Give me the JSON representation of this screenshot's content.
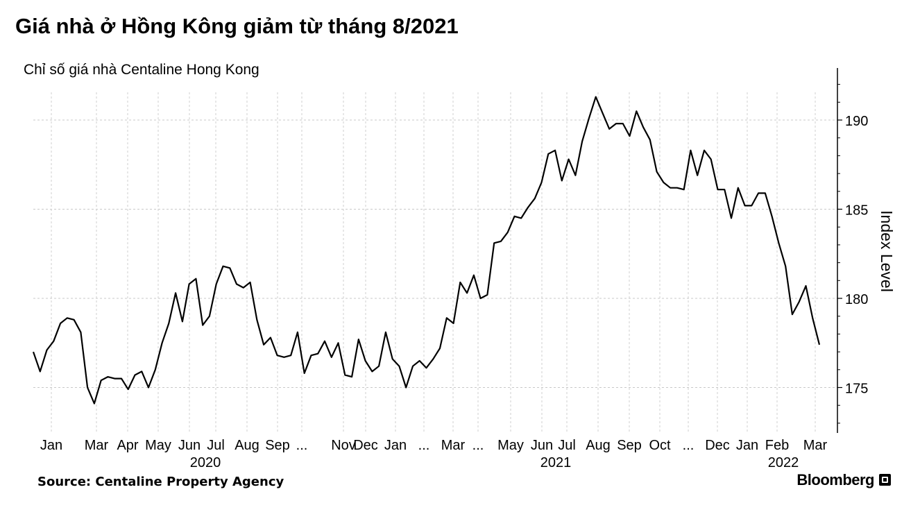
{
  "title": "Giá nhà ở Hồng Kông giảm từ tháng 8/2021",
  "subtitle": "Chỉ số giá nhà Centaline Hong Kong",
  "source": "Source: Centaline Property Agency",
  "brand": "Bloomberg",
  "brand_icon": "bloomberg-logo-icon",
  "chart_data": {
    "type": "line",
    "ylabel": "Index Level",
    "y_ticks": [
      175,
      180,
      185,
      190
    ],
    "ylim": [
      172.5,
      193
    ],
    "grid": true,
    "line_color": "#000000",
    "x_tick_labels": [
      "Jan",
      "Mar",
      "Apr",
      "May",
      "Jun",
      "Jul",
      "Aug",
      "Sep",
      "...",
      "Nov",
      "Dec",
      "Jan",
      "...",
      "Mar",
      "...",
      "May",
      "Jun",
      "Jul",
      "Aug",
      "Sep",
      "Oct",
      "...",
      "Dec",
      "Jan",
      "Feb",
      "Mar"
    ],
    "year_labels": [
      "2020",
      "2021",
      "2022"
    ],
    "series": [
      {
        "values": [
          177.0,
          175.9,
          177.1,
          177.6,
          178.6,
          178.9,
          178.8,
          178.1,
          175.0,
          174.1,
          175.4,
          175.6,
          175.5,
          175.5,
          174.9,
          175.7,
          175.9,
          175.0,
          176.0,
          177.5,
          178.6,
          180.3,
          178.7,
          180.8,
          181.1,
          178.5,
          179.0,
          180.8,
          181.8,
          181.7,
          180.8,
          180.6,
          180.9,
          178.8,
          177.4,
          177.8,
          176.8,
          176.7,
          176.8,
          178.1,
          175.8,
          176.8,
          176.9,
          177.6,
          176.7,
          177.5,
          175.7,
          175.6,
          177.7,
          176.5,
          175.9,
          176.2,
          178.1,
          176.6,
          176.2,
          175.0,
          176.2,
          176.5,
          176.1,
          176.6,
          177.2,
          178.9,
          178.6,
          180.9,
          180.3,
          181.3,
          180.0,
          180.2,
          183.1,
          183.2,
          183.7,
          184.6,
          184.5,
          185.1,
          185.6,
          186.5,
          188.1,
          188.3,
          186.6,
          187.8,
          186.9,
          188.8,
          190.1,
          191.3,
          190.4,
          189.5,
          189.8,
          189.8,
          189.1,
          190.5,
          189.6,
          188.9,
          187.1,
          186.5,
          186.2,
          186.2,
          186.1,
          188.3,
          186.9,
          188.3,
          187.8,
          186.1,
          186.1,
          184.5,
          186.2,
          185.2,
          185.2,
          185.9,
          185.9,
          184.6,
          183.1,
          181.8,
          179.1,
          179.8,
          180.7,
          178.9,
          177.4
        ]
      }
    ]
  }
}
